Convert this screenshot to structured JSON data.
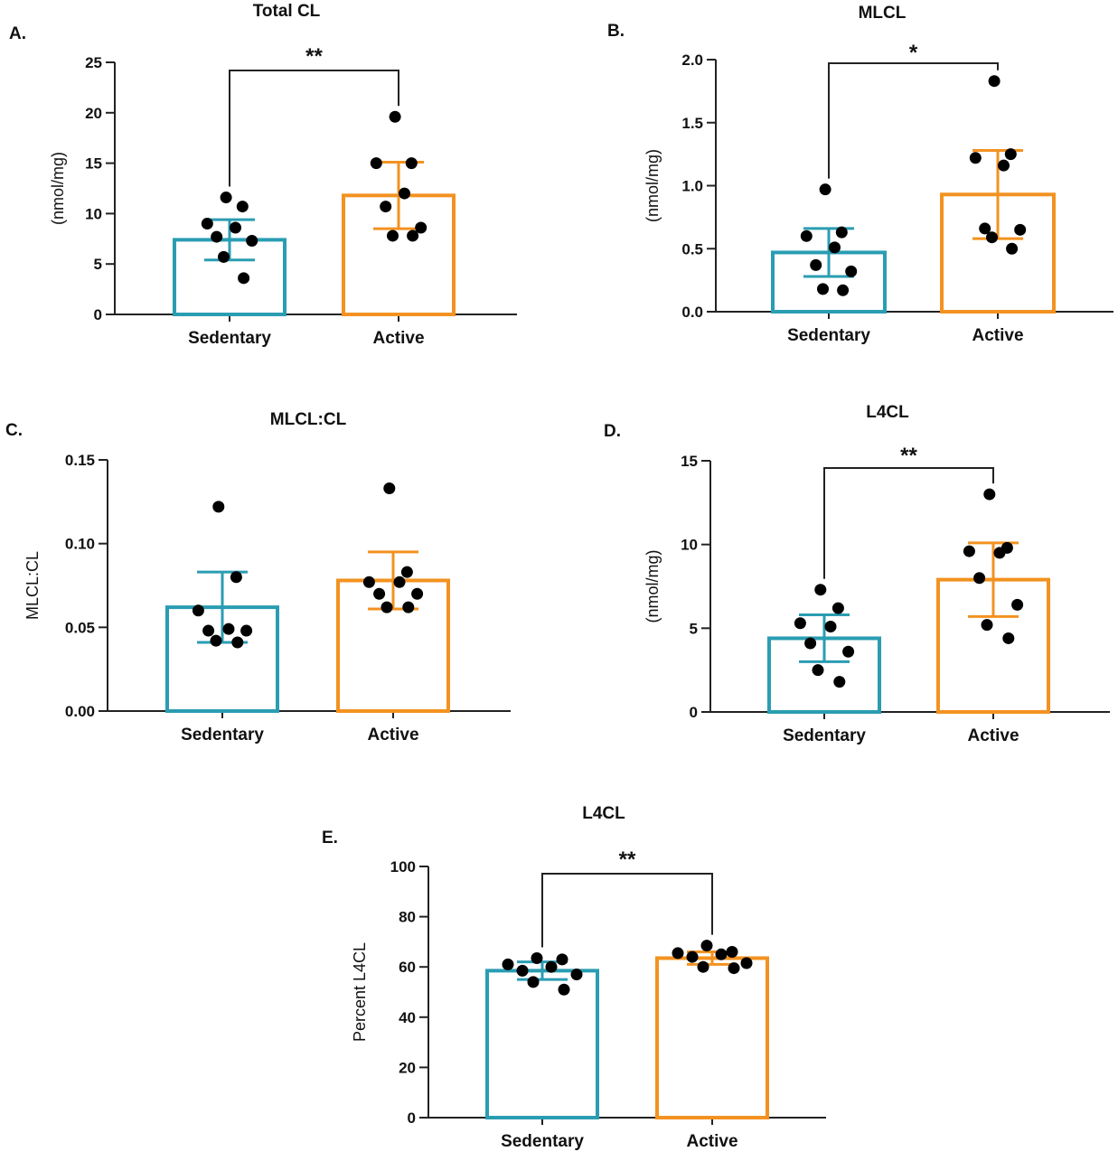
{
  "colors": {
    "sedentary": "#2a9db2",
    "active": "#f39220",
    "points": "#000000",
    "axis": "#222222"
  },
  "chart_data": [
    {
      "type": "bar",
      "panel": "A.",
      "title": "Total CL",
      "ylabel": "(nmol/mg)",
      "xlabel": "",
      "ylim": [
        0,
        25
      ],
      "yticks": [
        0,
        5,
        10,
        15,
        20,
        25
      ],
      "ytick_labels": [
        "0",
        "5",
        "10",
        "15",
        "20",
        "25"
      ],
      "categories": [
        "Sedentary",
        "Active"
      ],
      "values": [
        7.4,
        11.8
      ],
      "error": [
        2.0,
        3.3
      ],
      "points": [
        [
          11.6,
          10.7,
          9.0,
          8.6,
          7.7,
          7.3,
          5.7,
          3.6
        ],
        [
          19.6,
          15.0,
          15.0,
          12.0,
          10.7,
          8.6,
          7.8,
          7.8
        ]
      ],
      "significance": "**"
    },
    {
      "type": "bar",
      "panel": "B.",
      "title": "MLCL",
      "ylabel": "(nmol/mg)",
      "xlabel": "",
      "ylim": [
        0,
        2.0
      ],
      "yticks": [
        0,
        0.5,
        1.0,
        1.5,
        2.0
      ],
      "ytick_labels": [
        "0.0",
        "0.5",
        "1.0",
        "1.5",
        "2.0"
      ],
      "categories": [
        "Sedentary",
        "Active"
      ],
      "values": [
        0.47,
        0.93
      ],
      "error": [
        0.19,
        0.35
      ],
      "points": [
        [
          0.97,
          0.63,
          0.6,
          0.51,
          0.37,
          0.32,
          0.18,
          0.17
        ],
        [
          1.83,
          1.25,
          1.22,
          1.16,
          0.66,
          0.65,
          0.59,
          0.5
        ]
      ],
      "significance": "*"
    },
    {
      "type": "bar",
      "panel": "C.",
      "title": "MLCL:CL",
      "ylabel": "MLCL:CL",
      "xlabel": "",
      "ylim": [
        0,
        0.15
      ],
      "yticks": [
        0,
        0.05,
        0.1,
        0.15
      ],
      "ytick_labels": [
        "0.00",
        "0.05",
        "0.10",
        "0.15"
      ],
      "categories": [
        "Sedentary",
        "Active"
      ],
      "values": [
        0.062,
        0.078
      ],
      "error": [
        0.021,
        0.017
      ],
      "points": [
        [
          0.122,
          0.08,
          0.06,
          0.049,
          0.048,
          0.048,
          0.042,
          0.041
        ],
        [
          0.133,
          0.083,
          0.077,
          0.077,
          0.07,
          0.07,
          0.062,
          0.062
        ]
      ],
      "significance": ""
    },
    {
      "type": "bar",
      "panel": "D.",
      "title": "L4CL",
      "ylabel": "(nmol/mg)",
      "xlabel": "",
      "ylim": [
        0,
        15
      ],
      "yticks": [
        0,
        5,
        10,
        15
      ],
      "ytick_labels": [
        "0",
        "5",
        "10",
        "15"
      ],
      "categories": [
        "Sedentary",
        "Active"
      ],
      "values": [
        4.4,
        7.9
      ],
      "error": [
        1.4,
        2.2
      ],
      "points": [
        [
          7.3,
          6.2,
          5.3,
          5.1,
          4.1,
          3.6,
          2.5,
          1.8
        ],
        [
          13.0,
          9.8,
          9.6,
          9.5,
          8.0,
          6.4,
          5.2,
          4.4
        ]
      ],
      "significance": "**"
    },
    {
      "type": "bar",
      "panel": "E.",
      "title": "L4CL",
      "ylabel": "Percent L4CL",
      "xlabel": "",
      "ylim": [
        0,
        100
      ],
      "yticks": [
        0,
        20,
        40,
        60,
        80,
        100
      ],
      "ytick_labels": [
        "0",
        "20",
        "40",
        "60",
        "80",
        "100"
      ],
      "categories": [
        "Sedentary",
        "Active"
      ],
      "values": [
        58.5,
        63.5
      ],
      "error": [
        3.5,
        2.5
      ],
      "points": [
        [
          63.5,
          63.0,
          61.0,
          60.0,
          58.5,
          57.0,
          54.0,
          51.0
        ],
        [
          68.5,
          66.0,
          65.5,
          65.0,
          64.0,
          61.5,
          60.0,
          59.5
        ]
      ],
      "significance": "**"
    }
  ]
}
